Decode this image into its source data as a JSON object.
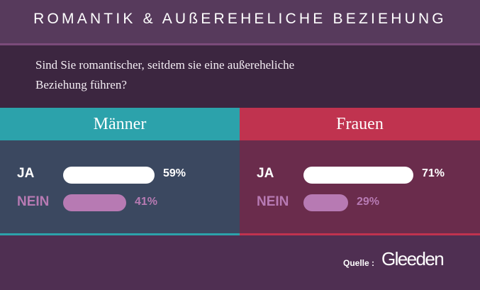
{
  "colors": {
    "background": "#4f2f52",
    "men_accent": "#2ca2ab",
    "men_body": "#3b4860",
    "women_accent": "#c0334f",
    "women_body": "#6a2c4c",
    "ja_bar": "#ffffff",
    "nein_bar": "#b77ab3"
  },
  "header": {
    "title": "ROMANTIK & AUßEREHELICHE BEZIEHUNG"
  },
  "question": {
    "line1": "Sind Sie romantischer, seitdem sie eine außereheliche",
    "line2": "Beziehung führen?"
  },
  "chart_data": {
    "type": "bar",
    "orientation": "horizontal",
    "unit": "%",
    "categories": [
      "JA",
      "NEIN"
    ],
    "groups": [
      {
        "label": "Männer",
        "values": [
          59,
          41
        ],
        "value_labels": [
          "59%",
          "41%"
        ]
      },
      {
        "label": "Frauen",
        "values": [
          71,
          29
        ],
        "value_labels": [
          "71%",
          "29%"
        ]
      }
    ],
    "xlim": [
      0,
      100
    ]
  },
  "footer": {
    "source_label": "Quelle :",
    "logo_text": "Gleeden"
  }
}
